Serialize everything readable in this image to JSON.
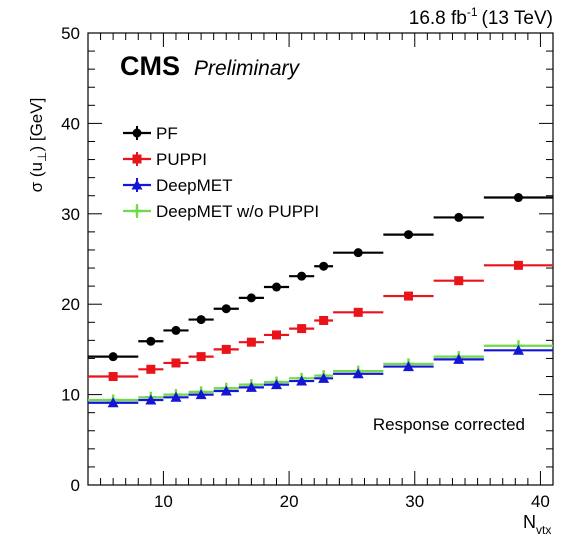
{
  "chart_data": {
    "type": "scatter",
    "lumi_value": "16.8 fb",
    "lumi_exponent": "-1",
    "lumi_energy": "(13 TeV)",
    "experiment": "CMS",
    "status": "Preliminary",
    "ylabel_prefix": "σ (u",
    "ylabel_sub": "⊥",
    "ylabel_suffix": ") [GeV]",
    "xlabel_main": "N",
    "xlabel_sub": "vtx",
    "annotation": "Response corrected",
    "xlim": [
      4,
      41
    ],
    "ylim": [
      0,
      50
    ],
    "x_ticks": [
      10,
      20,
      30,
      40
    ],
    "y_ticks": [
      0,
      10,
      20,
      30,
      40,
      50
    ],
    "grid": false,
    "legend_position": "top-left",
    "series": [
      {
        "name": "PF",
        "color": "#000000",
        "marker": "circle",
        "points": [
          {
            "x_low": 4,
            "x_high": 8,
            "y": 14.2
          },
          {
            "x_low": 8,
            "x_high": 10,
            "y": 15.9
          },
          {
            "x_low": 10,
            "x_high": 12,
            "y": 17.1
          },
          {
            "x_low": 12,
            "x_high": 14,
            "y": 18.3
          },
          {
            "x_low": 14,
            "x_high": 16,
            "y": 19.5
          },
          {
            "x_low": 16,
            "x_high": 18,
            "y": 20.7
          },
          {
            "x_low": 18,
            "x_high": 20,
            "y": 21.9
          },
          {
            "x_low": 20,
            "x_high": 22,
            "y": 23.1
          },
          {
            "x_low": 22,
            "x_high": 23.5,
            "y": 24.2
          },
          {
            "x_low": 23.5,
            "x_high": 27.5,
            "y": 25.7
          },
          {
            "x_low": 27.5,
            "x_high": 31.5,
            "y": 27.7
          },
          {
            "x_low": 31.5,
            "x_high": 35.5,
            "y": 29.6
          },
          {
            "x_low": 35.5,
            "x_high": 41,
            "y": 31.8
          }
        ]
      },
      {
        "name": "PUPPI",
        "color": "#e8141a",
        "marker": "square",
        "points": [
          {
            "x_low": 4,
            "x_high": 8,
            "y": 12.0
          },
          {
            "x_low": 8,
            "x_high": 10,
            "y": 12.8
          },
          {
            "x_low": 10,
            "x_high": 12,
            "y": 13.5
          },
          {
            "x_low": 12,
            "x_high": 14,
            "y": 14.2
          },
          {
            "x_low": 14,
            "x_high": 16,
            "y": 15.0
          },
          {
            "x_low": 16,
            "x_high": 18,
            "y": 15.8
          },
          {
            "x_low": 18,
            "x_high": 20,
            "y": 16.6
          },
          {
            "x_low": 20,
            "x_high": 22,
            "y": 17.3
          },
          {
            "x_low": 22,
            "x_high": 23.5,
            "y": 18.2
          },
          {
            "x_low": 23.5,
            "x_high": 27.5,
            "y": 19.1
          },
          {
            "x_low": 27.5,
            "x_high": 31.5,
            "y": 20.9
          },
          {
            "x_low": 31.5,
            "x_high": 35.5,
            "y": 22.6
          },
          {
            "x_low": 35.5,
            "x_high": 41,
            "y": 24.3
          }
        ]
      },
      {
        "name": "DeepMET",
        "color": "#1515d6",
        "marker": "triangle",
        "points": [
          {
            "x_low": 4,
            "x_high": 8,
            "y": 9.1
          },
          {
            "x_low": 8,
            "x_high": 10,
            "y": 9.4
          },
          {
            "x_low": 10,
            "x_high": 12,
            "y": 9.7
          },
          {
            "x_low": 12,
            "x_high": 14,
            "y": 10.0
          },
          {
            "x_low": 14,
            "x_high": 16,
            "y": 10.4
          },
          {
            "x_low": 16,
            "x_high": 18,
            "y": 10.8
          },
          {
            "x_low": 18,
            "x_high": 20,
            "y": 11.1
          },
          {
            "x_low": 20,
            "x_high": 22,
            "y": 11.5
          },
          {
            "x_low": 22,
            "x_high": 23.5,
            "y": 11.8
          },
          {
            "x_low": 23.5,
            "x_high": 27.5,
            "y": 12.3
          },
          {
            "x_low": 27.5,
            "x_high": 31.5,
            "y": 13.1
          },
          {
            "x_low": 31.5,
            "x_high": 35.5,
            "y": 13.9
          },
          {
            "x_low": 35.5,
            "x_high": 41,
            "y": 14.9
          }
        ]
      },
      {
        "name": "DeepMET w/o PUPPI",
        "color": "#6fda4c",
        "marker": "plus",
        "points": [
          {
            "x_low": 4,
            "x_high": 8,
            "y": 9.4
          },
          {
            "x_low": 8,
            "x_high": 10,
            "y": 9.7
          },
          {
            "x_low": 10,
            "x_high": 12,
            "y": 10.0
          },
          {
            "x_low": 12,
            "x_high": 14,
            "y": 10.3
          },
          {
            "x_low": 14,
            "x_high": 16,
            "y": 10.7
          },
          {
            "x_low": 16,
            "x_high": 18,
            "y": 11.1
          },
          {
            "x_low": 18,
            "x_high": 20,
            "y": 11.4
          },
          {
            "x_low": 20,
            "x_high": 22,
            "y": 11.8
          },
          {
            "x_low": 22,
            "x_high": 23.5,
            "y": 12.1
          },
          {
            "x_low": 23.5,
            "x_high": 27.5,
            "y": 12.6
          },
          {
            "x_low": 27.5,
            "x_high": 31.5,
            "y": 13.4
          },
          {
            "x_low": 31.5,
            "x_high": 35.5,
            "y": 14.2
          },
          {
            "x_low": 35.5,
            "x_high": 41,
            "y": 15.4
          }
        ]
      }
    ]
  }
}
